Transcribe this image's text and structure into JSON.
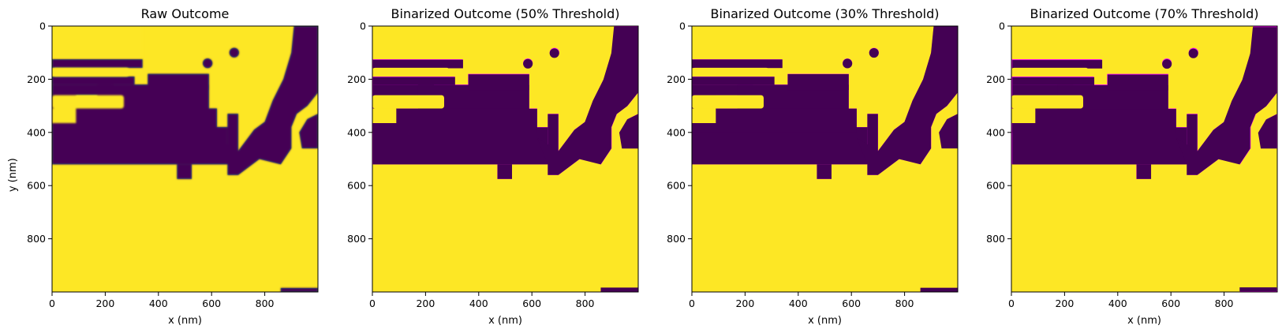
{
  "figure": {
    "background": "#ffffff"
  },
  "colors": {
    "viridis_dark": "#440154",
    "viridis_mid": "#21918c",
    "viridis_teal": "#35b779",
    "viridis_yellow": "#fde725",
    "contour": "#ff00ff"
  },
  "chart_data": [
    {
      "type": "heatmap",
      "title": "Raw Outcome",
      "xlabel": "x (nm)",
      "ylabel": "y (nm)",
      "xlim": [
        0,
        1000
      ],
      "ylim": [
        1000,
        0
      ],
      "xticks": [
        0,
        200,
        400,
        600,
        800
      ],
      "yticks": [
        0,
        200,
        400,
        600,
        800
      ],
      "threshold": null,
      "grid": false
    },
    {
      "type": "heatmap",
      "title": "Binarized Outcome (50% Threshold)",
      "xlabel": "x (nm)",
      "ylabel": "",
      "xlim": [
        0,
        1000
      ],
      "ylim": [
        1000,
        0
      ],
      "xticks": [
        0,
        200,
        400,
        600,
        800
      ],
      "yticks": [
        0,
        200,
        400,
        600,
        800
      ],
      "threshold": 0.5,
      "grid": false
    },
    {
      "type": "heatmap",
      "title": "Binarized Outcome (30% Threshold)",
      "xlabel": "x (nm)",
      "ylabel": "",
      "xlim": [
        0,
        1000
      ],
      "ylim": [
        1000,
        0
      ],
      "xticks": [
        0,
        200,
        400,
        600,
        800
      ],
      "yticks": [
        0,
        200,
        400,
        600,
        800
      ],
      "threshold": 0.3,
      "grid": false
    },
    {
      "type": "heatmap",
      "title": "Binarized Outcome (70% Threshold)",
      "xlabel": "x (nm)",
      "ylabel": "",
      "xlim": [
        0,
        1000
      ],
      "ylim": [
        1000,
        0
      ],
      "xticks": [
        0,
        200,
        400,
        600,
        800
      ],
      "yticks": [
        0,
        200,
        400,
        600,
        800
      ],
      "threshold": 0.7,
      "grid": false
    }
  ]
}
